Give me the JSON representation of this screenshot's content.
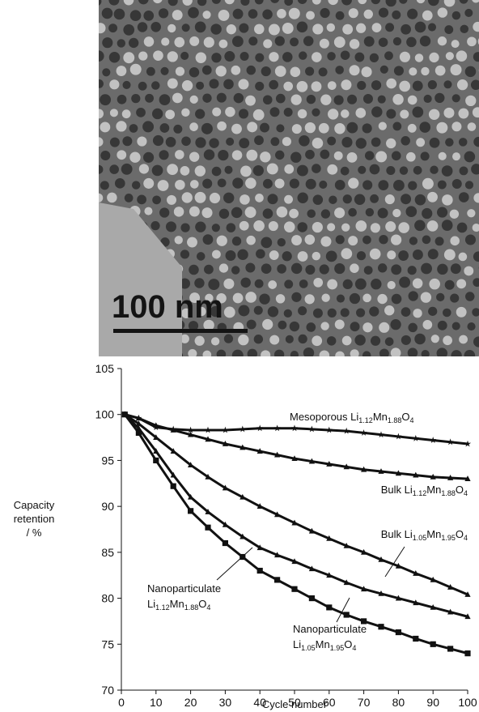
{
  "image": {
    "scale_bar": "100 nm"
  },
  "chart_data": {
    "type": "line",
    "y_label": [
      "Capacity",
      "retention",
      "/ %"
    ],
    "x_label": "Cycle number",
    "x": [
      1,
      5,
      10,
      15,
      20,
      25,
      30,
      35,
      40,
      45,
      50,
      55,
      60,
      65,
      70,
      75,
      80,
      85,
      90,
      95,
      100
    ],
    "xlim": [
      0,
      100
    ],
    "xticks": [
      0,
      10,
      20,
      30,
      40,
      50,
      60,
      70,
      80,
      90,
      100
    ],
    "ylim": [
      70,
      105
    ],
    "yticks": [
      70,
      75,
      80,
      85,
      90,
      95,
      100,
      105
    ],
    "series": [
      {
        "name": "Mesoporous Li1.12Mn1.88O4",
        "color": "#111111",
        "marker": "star",
        "values": [
          100,
          99.6,
          98.6,
          98.4,
          98.3,
          98.3,
          98.3,
          98.4,
          98.5,
          98.5,
          98.5,
          98.4,
          98.3,
          98.2,
          98.0,
          97.8,
          97.6,
          97.4,
          97.2,
          97.0,
          96.8
        ]
      },
      {
        "name": "Bulk Li1.12Mn1.88O4",
        "color": "#111111",
        "marker": "triangle",
        "values": [
          100,
          99.6,
          98.8,
          98.3,
          97.8,
          97.3,
          96.8,
          96.4,
          96.0,
          95.6,
          95.2,
          94.9,
          94.6,
          94.3,
          94.0,
          93.8,
          93.6,
          93.4,
          93.2,
          93.1,
          93.0
        ]
      },
      {
        "name": "Bulk Li1.05Mn1.95O4",
        "color": "#111111",
        "marker": "triangle",
        "values": [
          100,
          99.0,
          97.5,
          96.0,
          94.5,
          93.2,
          92.0,
          91.0,
          90.0,
          89.1,
          88.2,
          87.3,
          86.5,
          85.7,
          85.0,
          84.2,
          83.5,
          82.7,
          82.0,
          81.2,
          80.4
        ]
      },
      {
        "name": "Nanoparticulate Li1.12Mn1.88O4",
        "color": "#111111",
        "marker": "triangle",
        "values": [
          100,
          98.5,
          96.0,
          93.4,
          91.0,
          89.4,
          88.0,
          86.7,
          85.5,
          84.7,
          84.0,
          83.2,
          82.5,
          81.7,
          81.0,
          80.5,
          80.0,
          79.5,
          79.0,
          78.5,
          78.0
        ]
      },
      {
        "name": "Nanoparticulate Li1.05Mn1.95O4",
        "color": "#111111",
        "marker": "square",
        "values": [
          100,
          98.0,
          95.0,
          92.2,
          89.5,
          87.7,
          86.0,
          84.5,
          83.0,
          82.0,
          81.0,
          80.0,
          79.0,
          78.2,
          77.5,
          76.9,
          76.3,
          75.6,
          75.0,
          74.5,
          74.0
        ]
      }
    ]
  }
}
